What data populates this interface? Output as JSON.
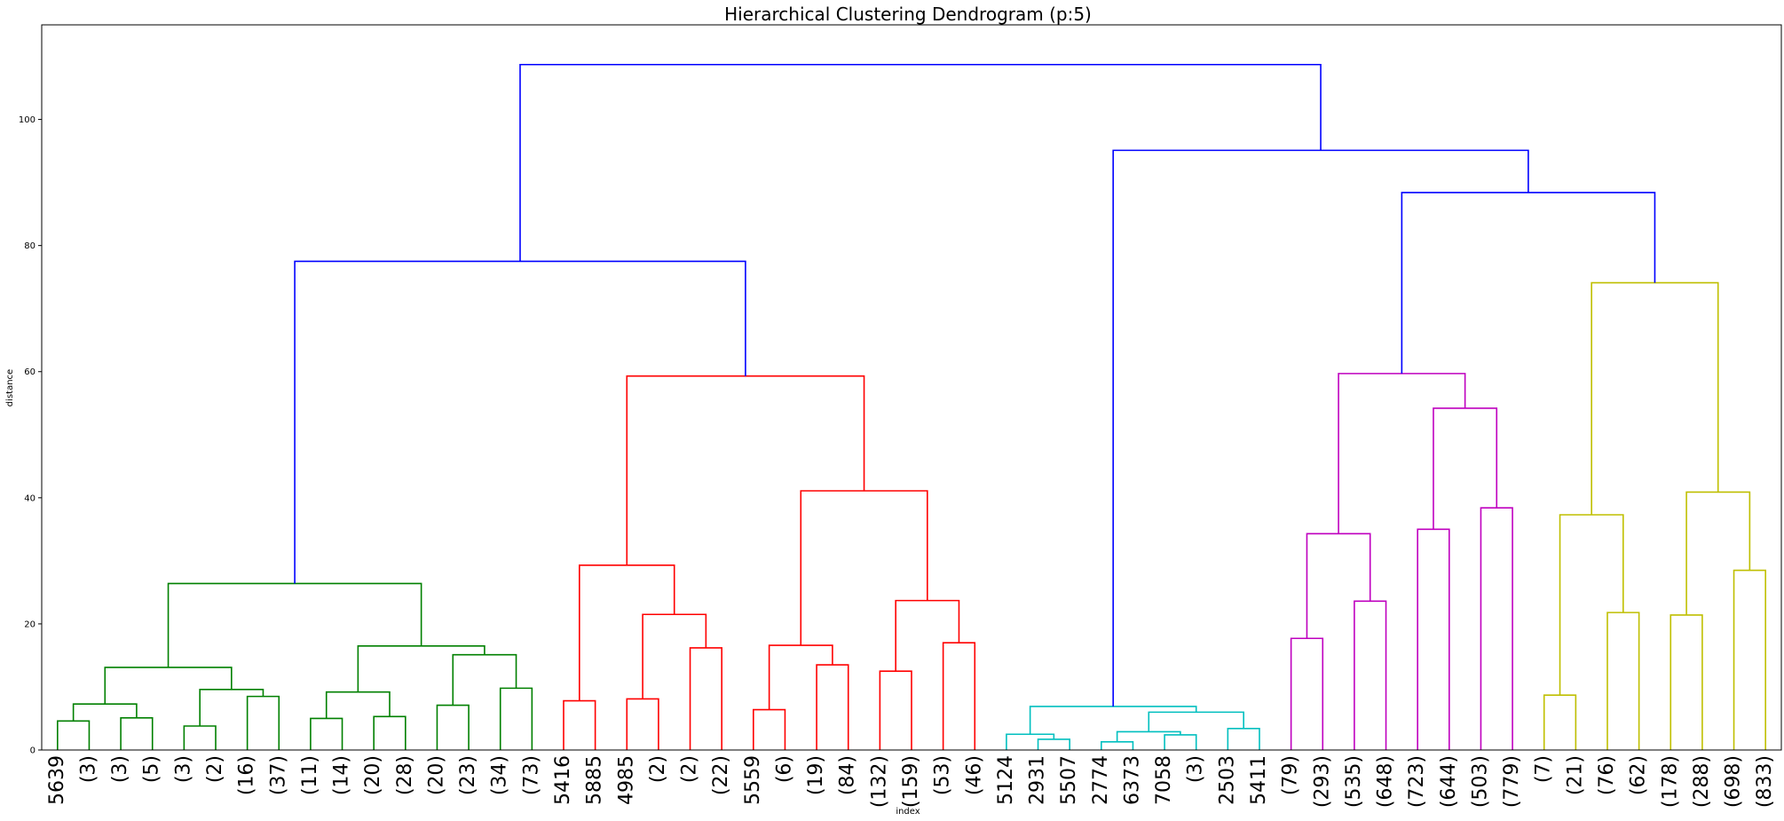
{
  "chart_data": {
    "type": "dendrogram",
    "title": "Hierarchical Clustering Dendrogram (p:5)",
    "xlabel": "index",
    "ylabel": "distance",
    "ylim": [
      0,
      115
    ],
    "yticks": [
      0,
      20,
      40,
      60,
      80,
      100
    ],
    "grid": false,
    "leaves": [
      "5639",
      "(3)",
      "(3)",
      "(5)",
      "(3)",
      "(2)",
      "(16)",
      "(37)",
      "(11)",
      "(14)",
      "(20)",
      "(28)",
      "(20)",
      "(23)",
      "(34)",
      "(73)",
      "5416",
      "5885",
      "4985",
      "(2)",
      "(2)",
      "(22)",
      "5559",
      "(6)",
      "(19)",
      "(84)",
      "(132)",
      "(159)",
      "(53)",
      "(46)",
      "5124",
      "2931",
      "5507",
      "2774",
      "6373",
      "7058",
      "(3)",
      "2503",
      "5411",
      "(79)",
      "(293)",
      "(535)",
      "(648)",
      "(723)",
      "(644)",
      "(503)",
      "(779)",
      "(7)",
      "(21)",
      "(76)",
      "(62)",
      "(178)",
      "(288)",
      "(698)",
      "(833)"
    ],
    "colors": {
      "g": "#008000",
      "r": "#ff0000",
      "c": "#00bfbf",
      "m": "#bf00bf",
      "y": "#bfbf00",
      "b": "#0000ff"
    },
    "links": [
      {
        "name": "g01",
        "a": "0",
        "b": "1",
        "h": 4.6,
        "color": "g"
      },
      {
        "name": "g02",
        "a": "2",
        "b": "3",
        "h": 5.1,
        "color": "g"
      },
      {
        "name": "g03",
        "a": "g01",
        "b": "g02",
        "h": 7.3,
        "color": "g"
      },
      {
        "name": "g04",
        "a": "4",
        "b": "5",
        "h": 3.8,
        "color": "g"
      },
      {
        "name": "g05",
        "a": "6",
        "b": "7",
        "h": 8.5,
        "color": "g"
      },
      {
        "name": "g06",
        "a": "g04",
        "b": "g05",
        "h": 9.6,
        "color": "g"
      },
      {
        "name": "g07",
        "a": "g03",
        "b": "g06",
        "h": 13.1,
        "color": "g"
      },
      {
        "name": "g08",
        "a": "8",
        "b": "9",
        "h": 5.0,
        "color": "g"
      },
      {
        "name": "g09",
        "a": "10",
        "b": "11",
        "h": 5.3,
        "color": "g"
      },
      {
        "name": "g10",
        "a": "g08",
        "b": "g09",
        "h": 9.2,
        "color": "g"
      },
      {
        "name": "g11",
        "a": "12",
        "b": "13",
        "h": 7.1,
        "color": "g"
      },
      {
        "name": "g12",
        "a": "14",
        "b": "15",
        "h": 9.8,
        "color": "g"
      },
      {
        "name": "g13",
        "a": "g11",
        "b": "g12",
        "h": 15.1,
        "color": "g"
      },
      {
        "name": "g14",
        "a": "g10",
        "b": "g13",
        "h": 16.5,
        "color": "g"
      },
      {
        "name": "g15",
        "a": "g07",
        "b": "g14",
        "h": 26.4,
        "color": "g"
      },
      {
        "name": "r01",
        "a": "16",
        "b": "17",
        "h": 7.8,
        "color": "r"
      },
      {
        "name": "r02",
        "a": "18",
        "b": "19",
        "h": 8.1,
        "color": "r"
      },
      {
        "name": "r03",
        "a": "20",
        "b": "21",
        "h": 16.2,
        "color": "r"
      },
      {
        "name": "r04",
        "a": "r02",
        "b": "r03",
        "h": 21.5,
        "color": "r"
      },
      {
        "name": "r05",
        "a": "r01",
        "b": "r04",
        "h": 29.3,
        "color": "r"
      },
      {
        "name": "r06",
        "a": "22",
        "b": "23",
        "h": 6.4,
        "color": "r"
      },
      {
        "name": "r07",
        "a": "24",
        "b": "25",
        "h": 13.5,
        "color": "r"
      },
      {
        "name": "r08",
        "a": "r06",
        "b": "r07",
        "h": 16.6,
        "color": "r"
      },
      {
        "name": "r09",
        "a": "26",
        "b": "27",
        "h": 12.5,
        "color": "r"
      },
      {
        "name": "r10",
        "a": "28",
        "b": "29",
        "h": 17.0,
        "color": "r"
      },
      {
        "name": "r11",
        "a": "r09",
        "b": "r10",
        "h": 23.7,
        "color": "r"
      },
      {
        "name": "r12",
        "a": "r08",
        "b": "r11",
        "h": 41.1,
        "color": "r"
      },
      {
        "name": "r13",
        "a": "r05",
        "b": "r12",
        "h": 59.3,
        "color": "r"
      },
      {
        "name": "b01",
        "a": "g15",
        "b": "r13",
        "h": 77.5,
        "color": "b"
      },
      {
        "name": "c01",
        "a": "31",
        "b": "32",
        "h": 1.7,
        "color": "c"
      },
      {
        "name": "c02",
        "a": "30",
        "b": "c01",
        "h": 2.5,
        "color": "c"
      },
      {
        "name": "c03",
        "a": "33",
        "b": "34",
        "h": 1.3,
        "color": "c"
      },
      {
        "name": "c04",
        "a": "35",
        "b": "36",
        "h": 2.4,
        "color": "c"
      },
      {
        "name": "c05",
        "a": "c03",
        "b": "c04",
        "h": 2.9,
        "color": "c"
      },
      {
        "name": "c06",
        "a": "37",
        "b": "38",
        "h": 3.4,
        "color": "c"
      },
      {
        "name": "c07",
        "a": "c05",
        "b": "c06",
        "h": 6.0,
        "color": "c"
      },
      {
        "name": "c08",
        "a": "c02",
        "b": "c07",
        "h": 6.9,
        "color": "c"
      },
      {
        "name": "m01",
        "a": "39",
        "b": "40",
        "h": 17.7,
        "color": "m"
      },
      {
        "name": "m02",
        "a": "41",
        "b": "42",
        "h": 23.6,
        "color": "m"
      },
      {
        "name": "m03",
        "a": "m01",
        "b": "m02",
        "h": 34.3,
        "color": "m"
      },
      {
        "name": "m04",
        "a": "43",
        "b": "44",
        "h": 35.0,
        "color": "m"
      },
      {
        "name": "m05",
        "a": "45",
        "b": "46",
        "h": 38.4,
        "color": "m"
      },
      {
        "name": "m06",
        "a": "m04",
        "b": "m05",
        "h": 54.2,
        "color": "m"
      },
      {
        "name": "m07",
        "a": "m03",
        "b": "m06",
        "h": 59.7,
        "color": "m"
      },
      {
        "name": "y01",
        "a": "47",
        "b": "48",
        "h": 8.7,
        "color": "y"
      },
      {
        "name": "y02",
        "a": "49",
        "b": "50",
        "h": 21.8,
        "color": "y"
      },
      {
        "name": "y03",
        "a": "y01",
        "b": "y02",
        "h": 37.3,
        "color": "y"
      },
      {
        "name": "y04",
        "a": "51",
        "b": "52",
        "h": 21.4,
        "color": "y"
      },
      {
        "name": "y05",
        "a": "53",
        "b": "54",
        "h": 28.5,
        "color": "y"
      },
      {
        "name": "y06",
        "a": "y04",
        "b": "y05",
        "h": 40.9,
        "color": "y"
      },
      {
        "name": "y07",
        "a": "y03",
        "b": "y06",
        "h": 74.1,
        "color": "y"
      },
      {
        "name": "b02",
        "a": "m07",
        "b": "y07",
        "h": 88.4,
        "color": "b"
      },
      {
        "name": "b03",
        "a": "c08",
        "b": "b02",
        "h": 95.1,
        "color": "b"
      },
      {
        "name": "b04",
        "a": "b01",
        "b": "b03",
        "h": 108.7,
        "color": "b"
      }
    ]
  }
}
